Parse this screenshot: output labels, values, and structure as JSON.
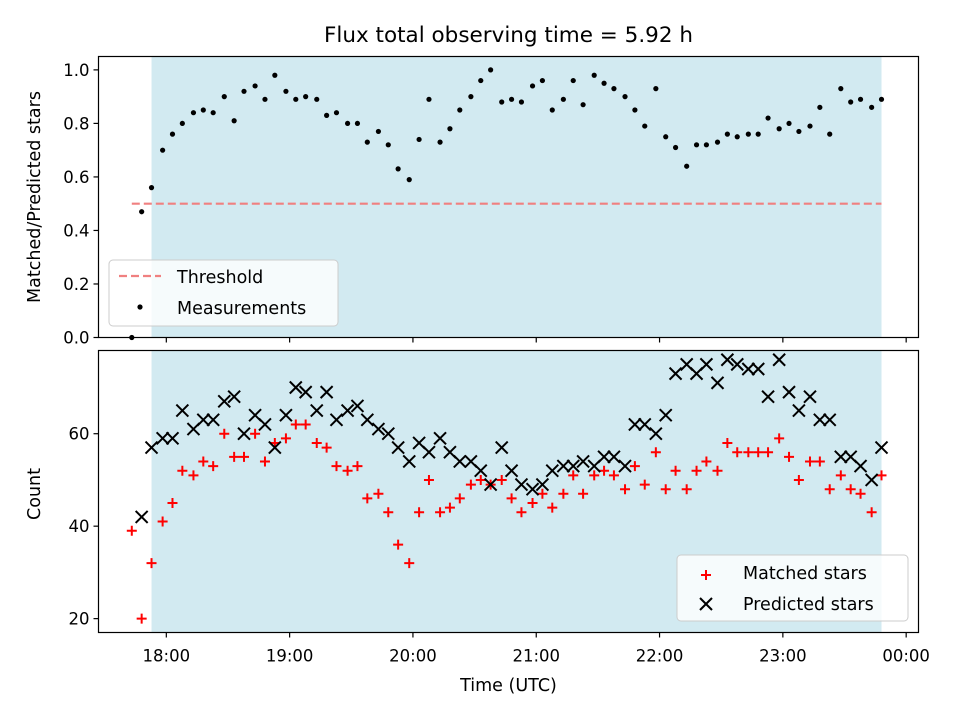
{
  "chart_data": [
    {
      "type": "scatter",
      "title": "Flux total observing time = 5.92 h",
      "xlabel": "",
      "ylabel": "Matched/Predicted stars",
      "xlim": [
        17.45,
        24.1
      ],
      "ylim": [
        0,
        1.05
      ],
      "yticks": [
        "0.0",
        "0.2",
        "0.4",
        "0.6",
        "0.8",
        "1.0"
      ],
      "legend_loc": "lower-left",
      "observing_window": [
        17.88,
        23.8
      ],
      "window_color": "#add8e6",
      "threshold": {
        "name": "Threshold",
        "y": 0.5,
        "x_range": [
          17.72,
          23.8
        ],
        "color": "#f08080"
      },
      "series": [
        {
          "name": "Measurements",
          "color": "#000000",
          "x": [
            17.72,
            17.8,
            17.88,
            17.97,
            18.05,
            18.13,
            18.22,
            18.3,
            18.38,
            18.47,
            18.55,
            18.63,
            18.72,
            18.8,
            18.88,
            18.97,
            19.05,
            19.13,
            19.22,
            19.3,
            19.38,
            19.47,
            19.55,
            19.63,
            19.72,
            19.8,
            19.88,
            19.97,
            20.05,
            20.13,
            20.22,
            20.3,
            20.38,
            20.47,
            20.55,
            20.63,
            20.72,
            20.8,
            20.88,
            20.97,
            21.05,
            21.13,
            21.22,
            21.3,
            21.38,
            21.47,
            21.55,
            21.63,
            21.72,
            21.8,
            21.88,
            21.97,
            22.05,
            22.13,
            22.22,
            22.3,
            22.38,
            22.47,
            22.55,
            22.63,
            22.72,
            22.8,
            22.88,
            22.97,
            23.05,
            23.13,
            23.22,
            23.3,
            23.38,
            23.47,
            23.55,
            23.63,
            23.72,
            23.8
          ],
          "y": [
            0.0,
            0.47,
            0.56,
            0.7,
            0.76,
            0.8,
            0.84,
            0.85,
            0.84,
            0.9,
            0.81,
            0.92,
            0.94,
            0.89,
            0.98,
            0.92,
            0.89,
            0.9,
            0.89,
            0.83,
            0.84,
            0.8,
            0.8,
            0.73,
            0.77,
            0.72,
            0.63,
            0.59,
            0.74,
            0.89,
            0.73,
            0.78,
            0.85,
            0.9,
            0.96,
            1.0,
            0.88,
            0.89,
            0.88,
            0.94,
            0.96,
            0.85,
            0.89,
            0.96,
            0.87,
            0.98,
            0.95,
            0.93,
            0.9,
            0.85,
            0.79,
            0.93,
            0.75,
            0.71,
            0.64,
            0.72,
            0.72,
            0.73,
            0.76,
            0.75,
            0.76,
            0.76,
            0.82,
            0.78,
            0.8,
            0.77,
            0.79,
            0.86,
            0.76,
            0.93,
            0.88,
            0.89,
            0.86,
            0.89
          ]
        }
      ]
    },
    {
      "type": "scatter",
      "title": "",
      "xlabel": "Time (UTC)",
      "ylabel": "Count",
      "xlim": [
        17.45,
        24.1
      ],
      "ylim": [
        17,
        78
      ],
      "xticks": [
        "18:00",
        "19:00",
        "20:00",
        "21:00",
        "22:00",
        "23:00",
        "00:00"
      ],
      "xtick_values": [
        18,
        19,
        20,
        21,
        22,
        23,
        24
      ],
      "yticks": [
        "20",
        "40",
        "60"
      ],
      "ytick_values": [
        20,
        40,
        60
      ],
      "legend_loc": "lower-right",
      "observing_window": [
        17.88,
        23.8
      ],
      "window_color": "#add8e6",
      "series": [
        {
          "name": "Matched stars",
          "marker": "plus",
          "color": "#ff0000",
          "x": [
            17.72,
            17.8,
            17.88,
            17.97,
            18.05,
            18.13,
            18.22,
            18.3,
            18.38,
            18.47,
            18.55,
            18.63,
            18.72,
            18.8,
            18.88,
            18.97,
            19.05,
            19.13,
            19.22,
            19.3,
            19.38,
            19.47,
            19.55,
            19.63,
            19.72,
            19.8,
            19.88,
            19.97,
            20.05,
            20.13,
            20.22,
            20.3,
            20.38,
            20.47,
            20.55,
            20.63,
            20.72,
            20.8,
            20.88,
            20.97,
            21.05,
            21.13,
            21.22,
            21.3,
            21.38,
            21.47,
            21.55,
            21.63,
            21.72,
            21.8,
            21.88,
            21.97,
            22.05,
            22.13,
            22.22,
            22.3,
            22.38,
            22.47,
            22.55,
            22.63,
            22.72,
            22.8,
            22.88,
            22.97,
            23.05,
            23.13,
            23.22,
            23.3,
            23.38,
            23.47,
            23.55,
            23.63,
            23.72,
            23.8
          ],
          "y": [
            39,
            20,
            32,
            41,
            45,
            52,
            51,
            54,
            53,
            60,
            55,
            55,
            60,
            54,
            58,
            59,
            62,
            62,
            58,
            57,
            53,
            52,
            53,
            46,
            47,
            43,
            36,
            32,
            43,
            50,
            43,
            44,
            46,
            49,
            50,
            49,
            50,
            46,
            43,
            45,
            47,
            44,
            47,
            51,
            47,
            51,
            52,
            51,
            48,
            53,
            49,
            56,
            48,
            52,
            48,
            52,
            54,
            52,
            58,
            56,
            56,
            56,
            56,
            59,
            55,
            50,
            54,
            54,
            48,
            51,
            48,
            47,
            43,
            51
          ]
        },
        {
          "name": "Predicted stars",
          "marker": "x",
          "color": "#000000",
          "x": [
            17.8,
            17.88,
            17.97,
            18.05,
            18.13,
            18.22,
            18.3,
            18.38,
            18.47,
            18.55,
            18.63,
            18.72,
            18.8,
            18.88,
            18.97,
            19.05,
            19.13,
            19.22,
            19.3,
            19.38,
            19.47,
            19.55,
            19.63,
            19.72,
            19.8,
            19.88,
            19.97,
            20.05,
            20.13,
            20.22,
            20.3,
            20.38,
            20.47,
            20.55,
            20.63,
            20.72,
            20.8,
            20.88,
            20.97,
            21.05,
            21.13,
            21.22,
            21.3,
            21.38,
            21.47,
            21.55,
            21.63,
            21.72,
            21.8,
            21.88,
            21.97,
            22.05,
            22.13,
            22.22,
            22.3,
            22.38,
            22.47,
            22.55,
            22.63,
            22.72,
            22.8,
            22.88,
            22.97,
            23.05,
            23.13,
            23.22,
            23.3,
            23.38,
            23.47,
            23.55,
            23.63,
            23.72,
            23.8
          ],
          "y": [
            42,
            57,
            59,
            59,
            65,
            61,
            63,
            63,
            67,
            68,
            60,
            64,
            62,
            57,
            64,
            70,
            69,
            65,
            69,
            63,
            65,
            66,
            63,
            61,
            60,
            57,
            54,
            58,
            56,
            59,
            56,
            54,
            54,
            52,
            49,
            57,
            52,
            49,
            48,
            49,
            52,
            53,
            53,
            54,
            53,
            55,
            55,
            53,
            62,
            62,
            60,
            64,
            73,
            75,
            73,
            75,
            71,
            76,
            75,
            74,
            74,
            68,
            76,
            69,
            65,
            68,
            63,
            63,
            55,
            55,
            53,
            50,
            57
          ]
        }
      ]
    }
  ]
}
